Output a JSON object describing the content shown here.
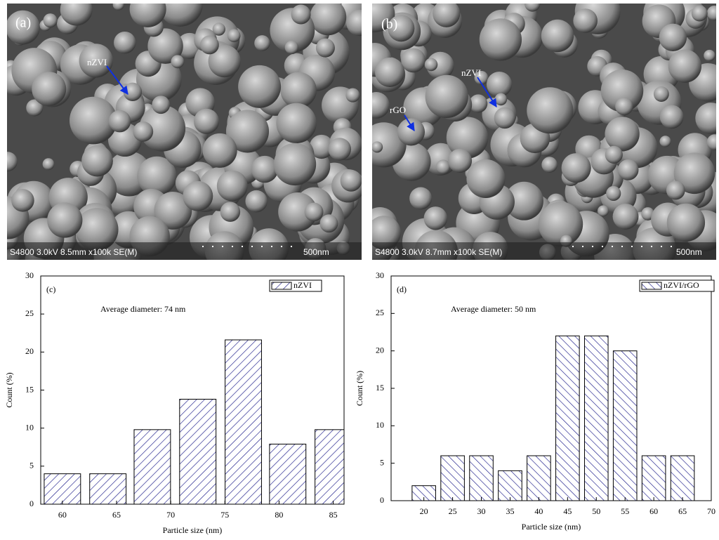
{
  "images": [
    {
      "label": "(a)",
      "annotations": [
        "nZVI"
      ],
      "caption": "S4800 3.0kV 8.5mm x100k SE(M)",
      "scale": "500nm"
    },
    {
      "label": "(b)",
      "annotations": [
        "nZVI",
        "rGO"
      ],
      "caption": "S4800 3.0kV 8.7mm x100k SE(M)",
      "scale": "500nm"
    }
  ],
  "chart_data": [
    {
      "type": "bar",
      "label": "(c)",
      "annotation": "Average diameter: 74 nm",
      "x_label": "Particle size (nm)",
      "y_label": "Count (%)",
      "x": [
        60,
        64.2,
        68.3,
        72.5,
        76.7,
        80.8,
        85
      ],
      "series": [
        {
          "name": "nZVI",
          "color": "#1c1c8a",
          "values": [
            4,
            4,
            9.8,
            13.8,
            21.6,
            7.9,
            9.8
          ]
        }
      ],
      "hatch": "/",
      "xlim": [
        58,
        86
      ],
      "xticks": [
        60,
        65,
        70,
        75,
        80,
        85
      ],
      "ylim": [
        0,
        30
      ],
      "yticks": [
        0,
        5,
        10,
        15,
        20,
        25,
        30
      ],
      "legend": "upper right"
    },
    {
      "type": "bar",
      "label": "(d)",
      "annotation": "Average diameter: 50 nm",
      "x_label": "Particle size (nm)",
      "y_label": "Count (%)",
      "x": [
        20,
        25,
        30,
        35,
        40,
        45,
        50,
        55,
        60,
        65
      ],
      "series": [
        {
          "name": "nZVI/rGO",
          "color": "#1c1c8a",
          "values": [
            2,
            6,
            6,
            4,
            6,
            22,
            22,
            20,
            6,
            6
          ]
        }
      ],
      "hatch": "\\",
      "xlim": [
        14.3,
        70
      ],
      "xticks": [
        20,
        25,
        30,
        35,
        40,
        45,
        50,
        55,
        60,
        65,
        70
      ],
      "ylim": [
        0,
        30
      ],
      "yticks": [
        0,
        5,
        10,
        15,
        20,
        25,
        30
      ],
      "legend": "upper right"
    }
  ]
}
